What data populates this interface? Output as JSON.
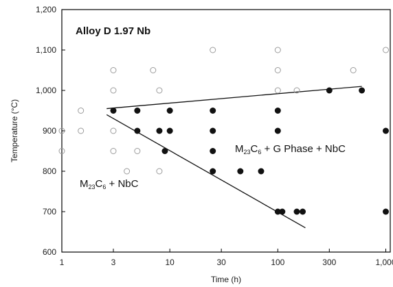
{
  "chart_data": {
    "type": "scatter",
    "title": "",
    "xlabel": "Time (h)",
    "ylabel": "Temperature (°C)",
    "xscale": "log",
    "xlim": [
      1,
      1100
    ],
    "ylim": [
      600,
      1200
    ],
    "x_ticks": [
      {
        "value": 1,
        "label": "1"
      },
      {
        "value": 3,
        "label": "3"
      },
      {
        "value": 10,
        "label": "10"
      },
      {
        "value": 30,
        "label": "30"
      },
      {
        "value": 100,
        "label": "100"
      },
      {
        "value": 300,
        "label": "300"
      },
      {
        "value": 1000,
        "label": "1,000"
      }
    ],
    "y_ticks": [
      {
        "value": 600,
        "label": "600"
      },
      {
        "value": 700,
        "label": "700"
      },
      {
        "value": 800,
        "label": "800"
      },
      {
        "value": 900,
        "label": "900"
      },
      {
        "value": 1000,
        "label": "1,000"
      },
      {
        "value": 1100,
        "label": "1,100"
      },
      {
        "value": 1200,
        "label": "1,200"
      }
    ],
    "series": [
      {
        "marker": "open-circle",
        "color": "#9a9a9a",
        "points": [
          [
            1,
            850
          ],
          [
            1,
            900
          ],
          [
            1.5,
            900
          ],
          [
            1.5,
            950
          ],
          [
            3,
            850
          ],
          [
            3,
            900
          ],
          [
            3,
            1000
          ],
          [
            3,
            1050
          ],
          [
            4,
            800
          ],
          [
            5,
            850
          ],
          [
            7,
            1050
          ],
          [
            8,
            800
          ],
          [
            8,
            1000
          ],
          [
            25,
            1100
          ],
          [
            100,
            1000
          ],
          [
            100,
            1050
          ],
          [
            100,
            1100
          ],
          [
            150,
            1000
          ],
          [
            500,
            1050
          ],
          [
            1000,
            1100
          ]
        ]
      },
      {
        "marker": "filled-circle",
        "color": "#111111",
        "points": [
          [
            3,
            950
          ],
          [
            5,
            900
          ],
          [
            5,
            950
          ],
          [
            8,
            900
          ],
          [
            9,
            850
          ],
          [
            10,
            900
          ],
          [
            10,
            950
          ],
          [
            25,
            800
          ],
          [
            25,
            850
          ],
          [
            25,
            900
          ],
          [
            25,
            950
          ],
          [
            45,
            800
          ],
          [
            70,
            800
          ],
          [
            100,
            700
          ],
          [
            100,
            900
          ],
          [
            100,
            950
          ],
          [
            110,
            700
          ],
          [
            150,
            700
          ],
          [
            170,
            700
          ],
          [
            300,
            1000
          ],
          [
            600,
            1000
          ],
          [
            1000,
            700
          ],
          [
            1000,
            900
          ]
        ]
      }
    ],
    "lines": [
      {
        "points": [
          [
            2.6,
            955
          ],
          [
            600,
            1010
          ]
        ]
      },
      {
        "points": [
          [
            2.6,
            940
          ],
          [
            180,
            660
          ]
        ]
      }
    ],
    "annotations": [
      {
        "id": "alloy",
        "text": "Alloy D 1.97 Nb"
      },
      {
        "id": "region_upper",
        "parts": [
          {
            "t": "M"
          },
          {
            "t": "23",
            "sub": true
          },
          {
            "t": "C"
          },
          {
            "t": "6",
            "sub": true
          },
          {
            "t": " + G Phase + NbC"
          }
        ]
      },
      {
        "id": "region_lower",
        "parts": [
          {
            "t": "M"
          },
          {
            "t": "23",
            "sub": true
          },
          {
            "t": "C"
          },
          {
            "t": "6",
            "sub": true
          },
          {
            "t": " + NbC"
          }
        ]
      }
    ],
    "grid": false,
    "legend": "none"
  }
}
